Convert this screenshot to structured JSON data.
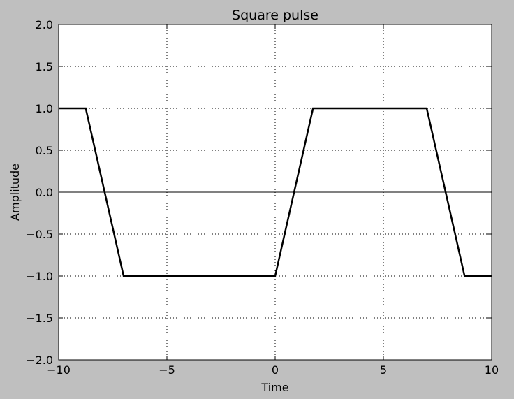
{
  "chart_data": {
    "type": "line",
    "title": "Square pulse",
    "xlabel": "Time",
    "ylabel": "Amplitude",
    "xlim": [
      -10,
      10
    ],
    "ylim": [
      -2.0,
      2.0
    ],
    "grid": true,
    "xticks": [
      -10,
      -5,
      0,
      5,
      10
    ],
    "xtick_labels": [
      "−10",
      "−5",
      "0",
      "5",
      "10"
    ],
    "yticks": [
      -2.0,
      -1.5,
      -1.0,
      -0.5,
      0.0,
      0.5,
      1.0,
      1.5,
      2.0
    ],
    "ytick_labels": [
      "−2.0",
      "−1.5",
      "−1.0",
      "−0.5",
      "0.0",
      "0.5",
      "1.0",
      "1.5",
      "2.0"
    ],
    "reference_line_y": 0,
    "series": [
      {
        "x": [
          -10,
          -8.75,
          -7.0,
          0.0,
          1.75,
          7.0,
          8.75,
          10
        ],
        "y": [
          1.0,
          1.0,
          -1.0,
          -1.0,
          1.0,
          1.0,
          -1.0,
          -1.0
        ]
      }
    ]
  },
  "colors": {
    "figure_background": "#bfbfbf",
    "axes_background": "#ffffff",
    "line": "#000000",
    "grid": "#000000"
  }
}
